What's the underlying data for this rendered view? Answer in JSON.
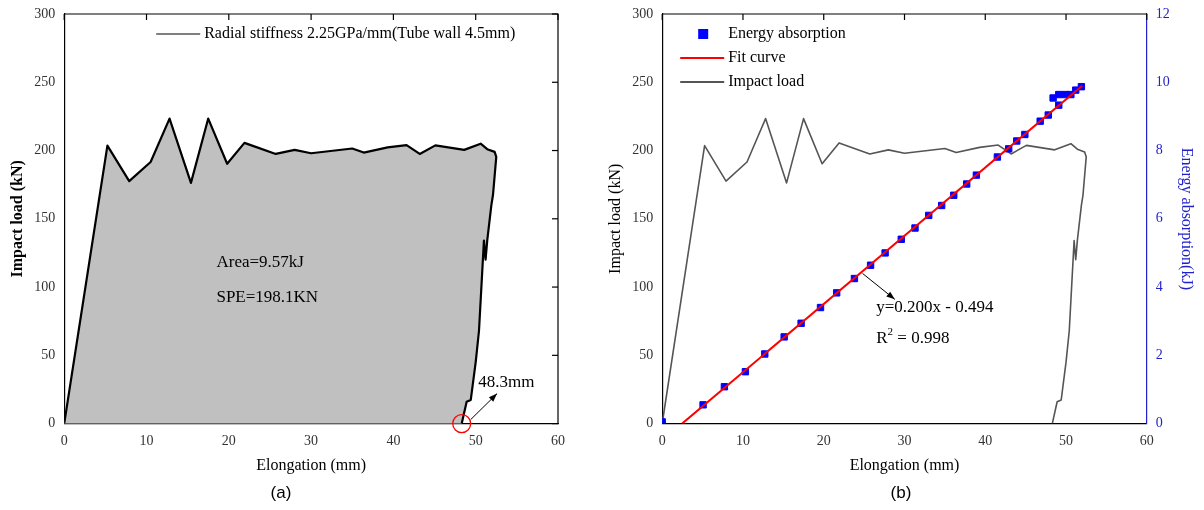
{
  "chart_data": [
    {
      "type": "area",
      "title": "(a)",
      "xlabel": "Elongation (mm)",
      "ylabel": "Impact load (kN)",
      "series": [
        {
          "name": "Radial stiffness 2.25GPa/mm(Tube wall 4.5mm)",
          "color": "#c0c0c0",
          "x": [
            0,
            5.25,
            7.9,
            10.5,
            12.8,
            15.4,
            17.5,
            19.8,
            21.9,
            25.7,
            28.0,
            30.0,
            35.0,
            36.4,
            39.3,
            41.6,
            43.2,
            45.1,
            48.6,
            50.6,
            51.4,
            52.3,
            52.5,
            52.1,
            51.9,
            51.4,
            51.2,
            51.0,
            50.4,
            50.0,
            49.4,
            48.9,
            48.3
          ],
          "values": [
            0,
            203.6,
            177.6,
            191.6,
            223.4,
            176.3,
            223.4,
            190.3,
            205.6,
            197.5,
            200.5,
            198,
            201.5,
            198.5,
            202.3,
            204,
            197.5,
            203.8,
            200.5,
            205,
            201,
            199,
            195.4,
            167.4,
            159.8,
            134,
            120,
            134,
            68,
            45,
            17.3,
            16,
            0
          ]
        }
      ],
      "xlim": [
        0,
        60
      ],
      "xticks": [
        0,
        10,
        20,
        30,
        40,
        50,
        60
      ],
      "ylim": [
        0,
        300
      ],
      "yticks": [
        0,
        50,
        100,
        150,
        200,
        250,
        300
      ],
      "legend": "top right",
      "marker": "none",
      "annotations": [
        "Area=9.57kJ",
        "SPE=198.1KN",
        {
          "text": "48.3mm",
          "x": 48.3,
          "y": 0
        }
      ]
    },
    {
      "type": "line",
      "title": "(b)",
      "xlabel": "Elongation (mm)",
      "ylabel": "Impact load (kN)",
      "y2label": "Energy absorption(kJ)",
      "series": [
        {
          "name": "Energy absorption",
          "type": "scatter",
          "axis": "y2",
          "color": "#0000ff",
          "marker": "square",
          "x": [
            0,
            5.06,
            7.7,
            10.3,
            12.7,
            15.1,
            17.2,
            19.6,
            21.6,
            23.8,
            25.8,
            27.6,
            29.6,
            31.3,
            33.0,
            34.6,
            36.1,
            37.7,
            38.9,
            41.5,
            42.9,
            43.9,
            44.9,
            46.8,
            47.8,
            48.2,
            49.1,
            49.9,
            50.6,
            51.2,
            51.9,
            49.1,
            48.4
          ],
          "values": [
            0.05,
            0.55,
            1.08,
            1.52,
            2.04,
            2.54,
            2.94,
            3.4,
            3.83,
            4.25,
            4.64,
            5.0,
            5.4,
            5.73,
            6.1,
            6.39,
            6.69,
            7.02,
            7.28,
            7.81,
            8.05,
            8.28,
            8.47,
            8.86,
            9.04,
            null,
            9.64,
            9.64,
            9.64,
            9.77,
            9.87,
            9.33,
            9.54
          ]
        },
        {
          "name": "Fit curve",
          "type": "line",
          "axis": "y2",
          "color": "#ff0000",
          "marker": "none",
          "x": [
            2.47,
            52
          ],
          "values": [
            0,
            9.9
          ]
        },
        {
          "name": "Impact load",
          "color": "#555555",
          "marker": "none",
          "x": [
            0,
            5.25,
            7.9,
            10.5,
            12.8,
            15.4,
            17.5,
            19.8,
            21.9,
            25.7,
            28.0,
            30.0,
            35.0,
            36.4,
            39.3,
            41.6,
            43.2,
            45.1,
            48.6,
            50.6,
            51.4,
            52.3,
            52.5,
            52.1,
            51.9,
            51.4,
            51.2,
            51.0,
            50.4,
            50.0,
            49.4,
            48.9,
            48.3
          ],
          "values": [
            0,
            203.6,
            177.6,
            191.6,
            223.4,
            176.3,
            223.4,
            190.3,
            205.6,
            197.5,
            200.5,
            198,
            201.5,
            198.5,
            202.3,
            204,
            197.5,
            203.8,
            200.5,
            205,
            201,
            199,
            195.4,
            167.4,
            159.8,
            134,
            120,
            134,
            68,
            45,
            17.3,
            16,
            0
          ]
        }
      ],
      "xlim": [
        0,
        60
      ],
      "xticks": [
        0,
        10,
        20,
        30,
        40,
        50,
        60
      ],
      "ylim": [
        0,
        300
      ],
      "yticks": [
        0,
        50,
        100,
        150,
        200,
        250,
        300
      ],
      "y2lim": [
        0,
        12
      ],
      "y2ticks": [
        0,
        2,
        4,
        6,
        8,
        10,
        12
      ],
      "legend": "top left",
      "annotations": [
        "y=0.200x - 0.494",
        "R$^{2}$ = 0.998"
      ]
    }
  ]
}
